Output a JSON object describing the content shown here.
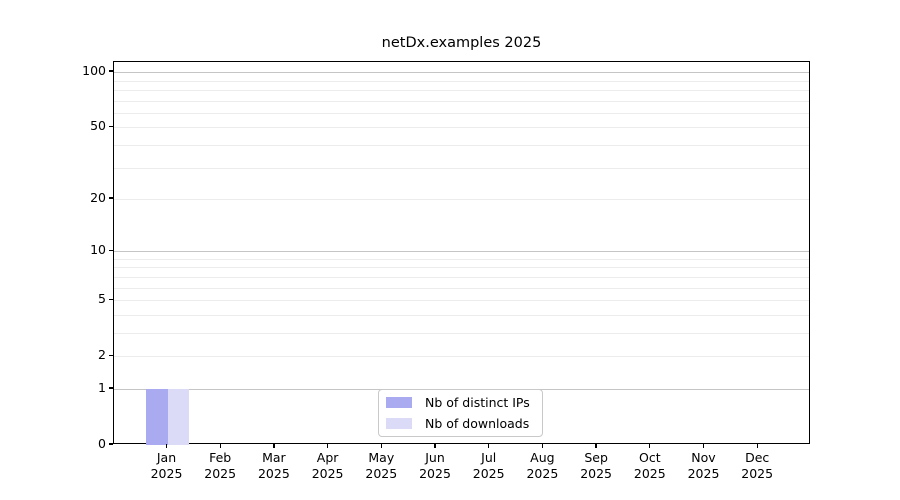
{
  "chart_data": {
    "type": "bar",
    "title": "netDx.examples 2025",
    "categories": [
      "Jan",
      "Feb",
      "Mar",
      "Apr",
      "May",
      "Jun",
      "Jul",
      "Aug",
      "Sep",
      "Oct",
      "Nov",
      "Dec"
    ],
    "year_label": "2025",
    "series": [
      {
        "name": "Nb of distinct IPs",
        "color": "#aaaaf0",
        "values": [
          1,
          0,
          0,
          0,
          0,
          0,
          0,
          0,
          0,
          0,
          0,
          0
        ]
      },
      {
        "name": "Nb of downloads",
        "color": "#dbdbf8",
        "values": [
          1,
          0,
          0,
          0,
          0,
          0,
          0,
          0,
          0,
          0,
          0,
          0
        ]
      }
    ],
    "xlabel": "",
    "ylabel": "",
    "yscale": "log1p",
    "ylim": [
      0,
      113.5
    ],
    "yticks": [
      0,
      1,
      2,
      5,
      10,
      20,
      50,
      100
    ],
    "gridlines_major": [
      1,
      10,
      100
    ],
    "gridlines_minor": [
      2,
      3,
      4,
      5,
      6,
      7,
      8,
      9,
      20,
      30,
      40,
      50,
      60,
      70,
      80,
      90
    ],
    "grid_color_major": "#c5c5c5",
    "grid_color_minor": "#ececec",
    "grid_on": true,
    "legend_position": "lower center"
  }
}
